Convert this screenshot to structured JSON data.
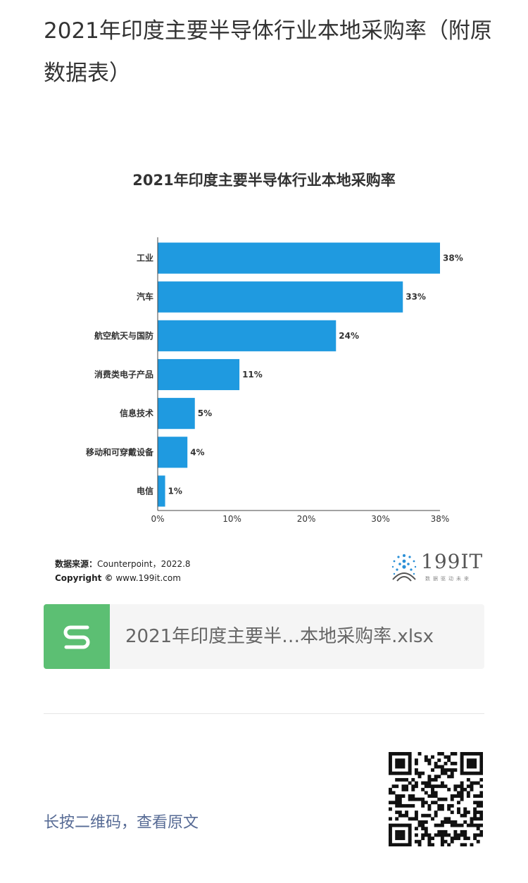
{
  "article": {
    "title": "2021年印度主要半导体行业本地采购率（附原数据表）"
  },
  "chart_data": {
    "type": "bar",
    "orientation": "horizontal",
    "title": "2021年印度主要半导体行业本地采购率",
    "categories": [
      "工业",
      "汽车",
      "航空航天与国防",
      "消费类电子产品",
      "信息技术",
      "移动和可穿戴设备",
      "电信"
    ],
    "values": [
      38,
      33,
      24,
      11,
      5,
      4,
      1
    ],
    "value_labels": [
      "38%",
      "33%",
      "24%",
      "11%",
      "5%",
      "4%",
      "1%"
    ],
    "xlim": [
      0,
      38
    ],
    "x_ticks": [
      0,
      10,
      20,
      30,
      38
    ],
    "x_tick_labels": [
      "0%",
      "10%",
      "20%",
      "30%",
      "38%"
    ],
    "bar_color": "#1f9ae0",
    "grid": false
  },
  "source": {
    "label": "数据来源：",
    "text": "Counterpoint，2022.8",
    "copyright_label": "Copyright ©",
    "copyright_text": " www.199it.com"
  },
  "logo": {
    "text": "199IT",
    "tagline": "数据驱动未来"
  },
  "file_card": {
    "icon": "spreadsheet-s-icon",
    "name": "2021年印度主要半…本地采购率.xlsx",
    "icon_color": "#5cbf73"
  },
  "footer": {
    "qr_hint": "长按二维码，查看原文",
    "qr_icon": "qr-code-icon"
  }
}
